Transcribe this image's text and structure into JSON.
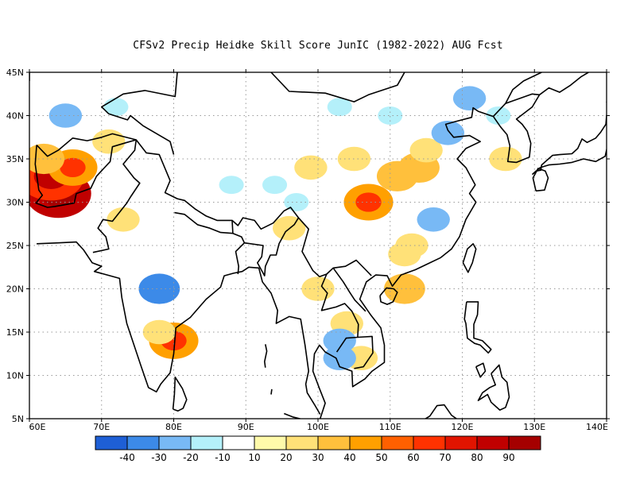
{
  "title": "CFSv2 Precip Heidke Skill Score JunIC (1982-2022) AUG Fcst",
  "map": {
    "lon_ticks": [
      "60E",
      "70E",
      "80E",
      "90E",
      "100E",
      "110E",
      "120E",
      "130E",
      "140E"
    ],
    "lat_ticks": [
      "45N",
      "40N",
      "35N",
      "30N",
      "25N",
      "20N",
      "15N",
      "10N",
      "5N"
    ],
    "lon_range": [
      60,
      140
    ],
    "lat_range": [
      5,
      45
    ],
    "gridlines": "dotted",
    "coastlines": "black"
  },
  "colorbar": {
    "labels": [
      "-40",
      "-30",
      "-20",
      "-10",
      "10",
      "20",
      "30",
      "40",
      "50",
      "60",
      "70",
      "80",
      "90"
    ],
    "colors": [
      "#1e5fd6",
      "#3c8ae8",
      "#78b9f5",
      "#b4f0fa",
      "#ffffff",
      "#fffaaa",
      "#ffe178",
      "#ffc03c",
      "#ffa000",
      "#ff6000",
      "#ff3200",
      "#e11400",
      "#c00000",
      "#a50000"
    ]
  },
  "anomalies": [
    {
      "lon": 64,
      "lat": 31,
      "value": 80
    },
    {
      "lon": 63,
      "lat": 33,
      "value": 60
    },
    {
      "lon": 66,
      "lat": 34,
      "value": 40
    },
    {
      "lon": 62,
      "lat": 35,
      "value": 30
    },
    {
      "lon": 71,
      "lat": 37,
      "value": 20
    },
    {
      "lon": 65,
      "lat": 40,
      "value": -20
    },
    {
      "lon": 72,
      "lat": 41,
      "value": -10
    },
    {
      "lon": 80,
      "lat": 14,
      "value": 40
    },
    {
      "lon": 78,
      "lat": 15,
      "value": 20
    },
    {
      "lon": 78,
      "lat": 20,
      "value": -30
    },
    {
      "lon": 73,
      "lat": 28,
      "value": 20
    },
    {
      "lon": 99,
      "lat": 34,
      "value": 20
    },
    {
      "lon": 105,
      "lat": 35,
      "value": 20
    },
    {
      "lon": 107,
      "lat": 30,
      "value": 40
    },
    {
      "lon": 111,
      "lat": 33,
      "value": 30
    },
    {
      "lon": 114,
      "lat": 34,
      "value": 30
    },
    {
      "lon": 115,
      "lat": 36,
      "value": 20
    },
    {
      "lon": 112,
      "lat": 24,
      "value": 20
    },
    {
      "lon": 112,
      "lat": 20,
      "value": 30
    },
    {
      "lon": 113,
      "lat": 25,
      "value": 20
    },
    {
      "lon": 116,
      "lat": 28,
      "value": -20
    },
    {
      "lon": 118,
      "lat": 38,
      "value": -20
    },
    {
      "lon": 121,
      "lat": 42,
      "value": -20
    },
    {
      "lon": 126,
      "lat": 35,
      "value": 20
    },
    {
      "lon": 125,
      "lat": 40,
      "value": -10
    },
    {
      "lon": 104,
      "lat": 16,
      "value": 20
    },
    {
      "lon": 106,
      "lat": 12,
      "value": 20
    },
    {
      "lon": 103,
      "lat": 14,
      "value": -20
    },
    {
      "lon": 103,
      "lat": 12,
      "value": -20
    },
    {
      "lon": 100,
      "lat": 20,
      "value": 20
    },
    {
      "lon": 88,
      "lat": 32,
      "value": -10
    },
    {
      "lon": 94,
      "lat": 32,
      "value": -10
    },
    {
      "lon": 97,
      "lat": 30,
      "value": -10
    },
    {
      "lon": 96,
      "lat": 27,
      "value": 20
    },
    {
      "lon": 110,
      "lat": 40,
      "value": -10
    },
    {
      "lon": 103,
      "lat": 41,
      "value": -10
    }
  ]
}
